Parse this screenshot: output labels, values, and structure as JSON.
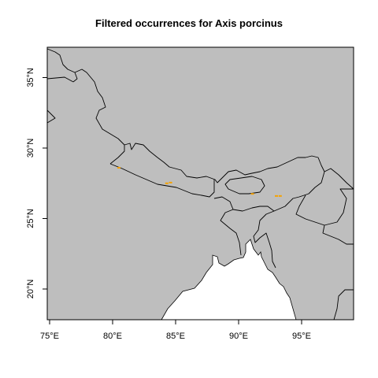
{
  "title": "Filtered occurrences for Axis porcinus",
  "colors": {
    "land": "#bebebe",
    "sea": "#ffffff",
    "border": "#000000",
    "points": "#f5a200"
  },
  "map": {
    "lon_range": [
      74.5,
      89.2
    ],
    "lat_range": [
      17.7,
      37.1
    ],
    "x_ticks": [
      {
        "value": 75,
        "label": "75°E"
      },
      {
        "value": 80,
        "label": "80°E"
      },
      {
        "value": 85,
        "label": "85°E"
      },
      {
        "value": 90,
        "label": "90°E"
      },
      {
        "value": 95,
        "label": "95°E"
      }
    ],
    "y_ticks": [
      {
        "value": 20,
        "label": "20°N"
      },
      {
        "value": 25,
        "label": "25°N"
      },
      {
        "value": 30,
        "label": "30°N"
      },
      {
        "value": 35,
        "label": "35°N"
      }
    ]
  },
  "occurrences": [
    {
      "lon": 80.5,
      "lat": 28.6
    },
    {
      "lon": 84.3,
      "lat": 27.5
    },
    {
      "lon": 84.6,
      "lat": 27.55
    },
    {
      "lon": 91.1,
      "lat": 26.75
    },
    {
      "lon": 93.0,
      "lat": 26.6
    },
    {
      "lon": 93.3,
      "lat": 26.6
    }
  ]
}
